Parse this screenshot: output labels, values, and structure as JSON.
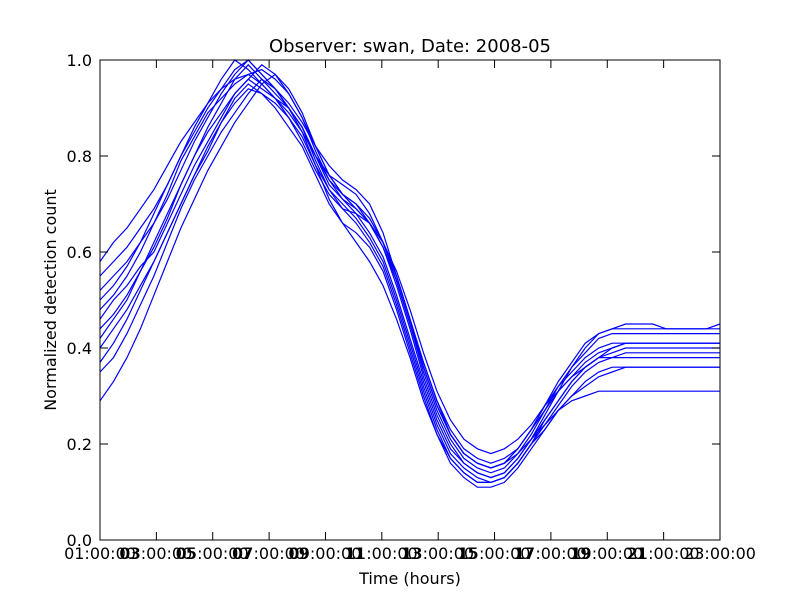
{
  "chart_data": {
    "type": "line",
    "title": "Observer: swan, Date: 2008-05",
    "xlabel": "Time (hours)",
    "ylabel": "Normalized detection count",
    "xlim": [
      1,
      23
    ],
    "ylim": [
      0.0,
      1.0
    ],
    "x_tick_labels": [
      "01:00:00",
      "03:00:00",
      "05:00:00",
      "07:00:00",
      "09:00:00",
      "11:00:00",
      "13:00:00",
      "15:00:00",
      "17:00:00",
      "19:00:00",
      "21:00:00",
      "23:00:00"
    ],
    "x_tick_labels_overlay": [
      "03",
      "05",
      "07",
      "09",
      "11",
      "13",
      "15",
      "17",
      "19",
      "21"
    ],
    "y_tick_labels": [
      "0.0",
      "0.2",
      "0.4",
      "0.6",
      "0.8",
      "1.0"
    ],
    "line_color": "#0000ff",
    "grid": false,
    "series": [
      {
        "values": [
          0.46,
          0.5,
          0.53,
          0.57,
          0.6,
          0.66,
          0.72,
          0.78,
          0.83,
          0.88,
          0.93,
          0.96,
          0.94,
          0.92,
          0.9,
          0.86,
          0.8,
          0.75,
          0.72,
          0.7,
          0.66,
          0.61,
          0.53,
          0.44,
          0.34,
          0.26,
          0.2,
          0.16,
          0.14,
          0.13,
          0.14,
          0.17,
          0.21,
          0.26,
          0.31,
          0.36,
          0.4,
          0.43,
          0.44,
          0.45,
          0.45,
          0.45,
          0.44,
          0.44,
          0.44,
          0.44,
          0.45
        ]
      },
      {
        "values": [
          0.52,
          0.55,
          0.58,
          0.62,
          0.66,
          0.71,
          0.77,
          0.83,
          0.88,
          0.93,
          0.97,
          1.0,
          0.97,
          0.94,
          0.91,
          0.87,
          0.82,
          0.78,
          0.75,
          0.73,
          0.7,
          0.64,
          0.55,
          0.46,
          0.36,
          0.28,
          0.22,
          0.18,
          0.16,
          0.15,
          0.16,
          0.19,
          0.23,
          0.28,
          0.33,
          0.37,
          0.41,
          0.43,
          0.44,
          0.44,
          0.44,
          0.44,
          0.44,
          0.44,
          0.44,
          0.44,
          0.44
        ]
      },
      {
        "values": [
          0.4,
          0.44,
          0.48,
          0.53,
          0.58,
          0.64,
          0.7,
          0.76,
          0.81,
          0.87,
          0.92,
          0.95,
          0.93,
          0.91,
          0.88,
          0.84,
          0.78,
          0.73,
          0.7,
          0.67,
          0.63,
          0.58,
          0.5,
          0.41,
          0.32,
          0.24,
          0.18,
          0.15,
          0.13,
          0.12,
          0.13,
          0.16,
          0.2,
          0.25,
          0.29,
          0.33,
          0.36,
          0.38,
          0.39,
          0.4,
          0.4,
          0.4,
          0.4,
          0.4,
          0.4,
          0.4,
          0.4
        ]
      },
      {
        "values": [
          0.55,
          0.58,
          0.61,
          0.65,
          0.69,
          0.74,
          0.8,
          0.86,
          0.91,
          0.96,
          1.0,
          0.98,
          0.95,
          0.92,
          0.89,
          0.85,
          0.8,
          0.76,
          0.74,
          0.72,
          0.68,
          0.62,
          0.54,
          0.45,
          0.35,
          0.27,
          0.21,
          0.17,
          0.15,
          0.14,
          0.15,
          0.18,
          0.22,
          0.27,
          0.32,
          0.36,
          0.39,
          0.42,
          0.43,
          0.43,
          0.43,
          0.43,
          0.43,
          0.43,
          0.43,
          0.43,
          0.43
        ]
      },
      {
        "values": [
          0.35,
          0.38,
          0.43,
          0.49,
          0.55,
          0.62,
          0.69,
          0.75,
          0.8,
          0.85,
          0.89,
          0.93,
          0.96,
          0.94,
          0.9,
          0.85,
          0.78,
          0.71,
          0.66,
          0.62,
          0.58,
          0.53,
          0.46,
          0.38,
          0.29,
          0.22,
          0.16,
          0.13,
          0.11,
          0.11,
          0.12,
          0.15,
          0.19,
          0.23,
          0.27,
          0.3,
          0.32,
          0.34,
          0.35,
          0.36,
          0.36,
          0.36,
          0.36,
          0.36,
          0.36,
          0.36,
          0.36
        ]
      },
      {
        "values": [
          0.48,
          0.51,
          0.55,
          0.6,
          0.66,
          0.72,
          0.79,
          0.84,
          0.89,
          0.92,
          0.95,
          0.97,
          0.98,
          0.96,
          0.93,
          0.88,
          0.82,
          0.76,
          0.72,
          0.7,
          0.67,
          0.62,
          0.55,
          0.46,
          0.37,
          0.29,
          0.23,
          0.19,
          0.17,
          0.16,
          0.17,
          0.19,
          0.23,
          0.27,
          0.31,
          0.34,
          0.37,
          0.39,
          0.4,
          0.41,
          0.41,
          0.41,
          0.41,
          0.41,
          0.41,
          0.41,
          0.41
        ]
      },
      {
        "values": [
          0.29,
          0.33,
          0.38,
          0.44,
          0.51,
          0.58,
          0.65,
          0.71,
          0.77,
          0.82,
          0.87,
          0.91,
          0.95,
          0.97,
          0.94,
          0.89,
          0.82,
          0.76,
          0.72,
          0.69,
          0.66,
          0.61,
          0.54,
          0.45,
          0.36,
          0.28,
          0.22,
          0.18,
          0.16,
          0.15,
          0.16,
          0.18,
          0.21,
          0.24,
          0.27,
          0.29,
          0.3,
          0.31,
          0.31,
          0.31,
          0.31,
          0.31,
          0.31,
          0.31,
          0.31,
          0.31,
          0.31
        ]
      },
      {
        "values": [
          0.42,
          0.46,
          0.5,
          0.56,
          0.61,
          0.67,
          0.74,
          0.8,
          0.86,
          0.91,
          0.96,
          0.99,
          0.96,
          0.93,
          0.9,
          0.86,
          0.79,
          0.73,
          0.69,
          0.66,
          0.62,
          0.57,
          0.49,
          0.4,
          0.31,
          0.23,
          0.17,
          0.14,
          0.12,
          0.12,
          0.13,
          0.16,
          0.2,
          0.24,
          0.28,
          0.32,
          0.35,
          0.37,
          0.38,
          0.39,
          0.39,
          0.39,
          0.39,
          0.39,
          0.39,
          0.39,
          0.39
        ]
      },
      {
        "values": [
          0.5,
          0.53,
          0.57,
          0.62,
          0.68,
          0.74,
          0.8,
          0.85,
          0.9,
          0.94,
          0.98,
          1.0,
          0.97,
          0.94,
          0.9,
          0.86,
          0.8,
          0.74,
          0.71,
          0.69,
          0.66,
          0.62,
          0.55,
          0.46,
          0.37,
          0.29,
          0.22,
          0.18,
          0.16,
          0.15,
          0.16,
          0.19,
          0.23,
          0.28,
          0.32,
          0.35,
          0.38,
          0.4,
          0.41,
          0.41,
          0.41,
          0.41,
          0.41,
          0.41,
          0.41,
          0.41,
          0.41
        ]
      },
      {
        "values": [
          0.37,
          0.41,
          0.46,
          0.52,
          0.58,
          0.64,
          0.7,
          0.76,
          0.82,
          0.87,
          0.91,
          0.94,
          0.93,
          0.9,
          0.86,
          0.82,
          0.76,
          0.7,
          0.66,
          0.64,
          0.61,
          0.56,
          0.48,
          0.39,
          0.3,
          0.22,
          0.17,
          0.14,
          0.12,
          0.12,
          0.13,
          0.16,
          0.2,
          0.23,
          0.27,
          0.3,
          0.33,
          0.35,
          0.36,
          0.36,
          0.36,
          0.36,
          0.36,
          0.36,
          0.36,
          0.36,
          0.36
        ]
      },
      {
        "values": [
          0.58,
          0.62,
          0.65,
          0.69,
          0.73,
          0.78,
          0.83,
          0.87,
          0.91,
          0.94,
          0.96,
          0.97,
          0.95,
          0.92,
          0.88,
          0.83,
          0.77,
          0.72,
          0.69,
          0.68,
          0.66,
          0.62,
          0.56,
          0.48,
          0.39,
          0.31,
          0.25,
          0.21,
          0.19,
          0.18,
          0.19,
          0.21,
          0.24,
          0.28,
          0.31,
          0.34,
          0.36,
          0.38,
          0.38,
          0.38,
          0.38,
          0.38,
          0.38,
          0.38,
          0.38,
          0.38,
          0.38
        ]
      },
      {
        "values": [
          0.44,
          0.47,
          0.51,
          0.56,
          0.62,
          0.68,
          0.74,
          0.8,
          0.85,
          0.89,
          0.93,
          0.96,
          0.99,
          0.97,
          0.93,
          0.88,
          0.81,
          0.75,
          0.71,
          0.68,
          0.64,
          0.59,
          0.51,
          0.42,
          0.33,
          0.25,
          0.19,
          0.16,
          0.14,
          0.13,
          0.14,
          0.17,
          0.21,
          0.25,
          0.29,
          0.33,
          0.36,
          0.38,
          0.4,
          0.41,
          0.41,
          0.41,
          0.41,
          0.41,
          0.41,
          0.41,
          0.41
        ]
      }
    ]
  }
}
